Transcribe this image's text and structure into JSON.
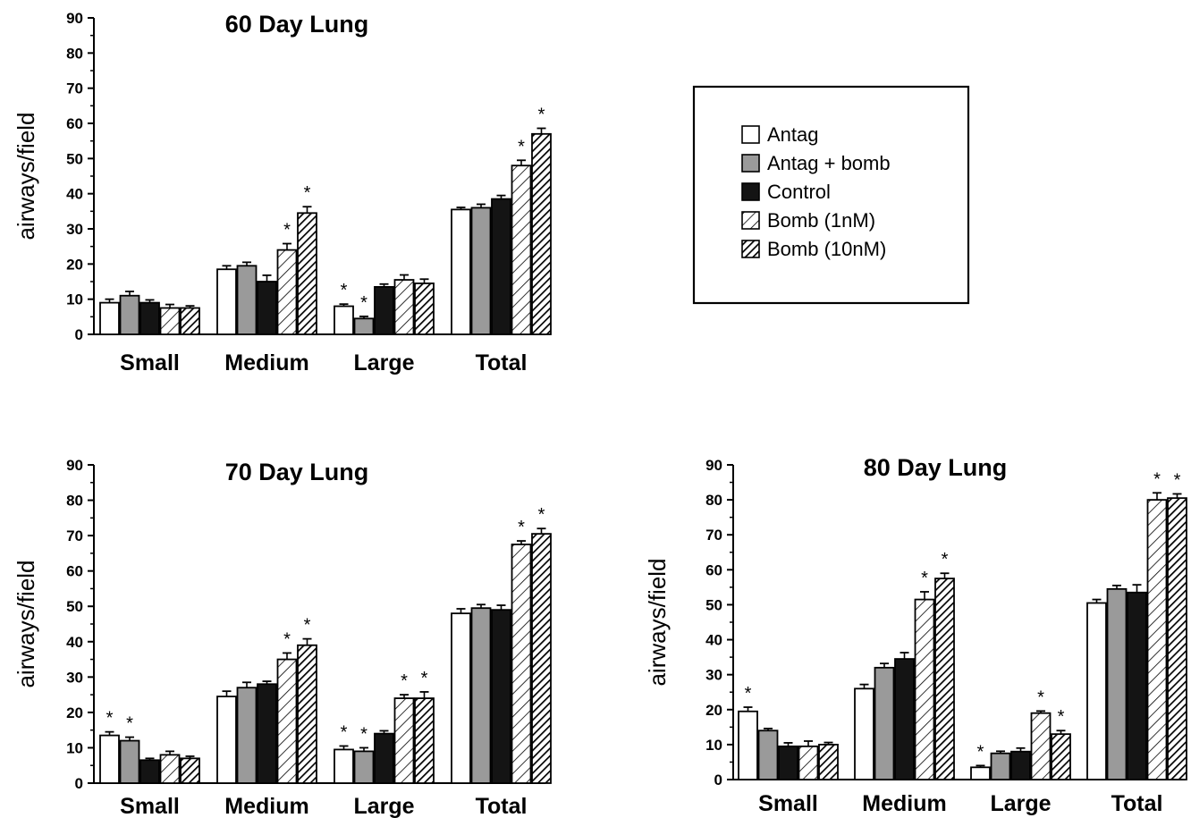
{
  "legend_title": "",
  "legend": [
    {
      "name": "Antag",
      "pattern": "white"
    },
    {
      "name": "Antag + bomb",
      "pattern": "gray"
    },
    {
      "name": "Control",
      "pattern": "black"
    },
    {
      "name": "Bomb (1nM)",
      "pattern": "hatch-light"
    },
    {
      "name": "Bomb (10nM)",
      "pattern": "hatch-dark"
    }
  ],
  "colors": {
    "white": "#ffffff",
    "gray": "#9a9a9a",
    "black": "#141414",
    "hatch_line": "#000000"
  },
  "chart_data": [
    {
      "type": "bar",
      "title": "60 Day Lung",
      "ylabel": "airways/field",
      "xlabel": "",
      "ylim": [
        0,
        90
      ],
      "yticks": [
        0,
        10,
        20,
        30,
        40,
        50,
        60,
        70,
        80,
        90
      ],
      "categories": [
        "Small",
        "Medium",
        "Large",
        "Total"
      ],
      "grid": false,
      "series": [
        {
          "name": "Antag",
          "values": [
            9,
            18.5,
            8,
            35.5
          ],
          "errors": [
            1,
            1,
            0.6,
            0.6
          ],
          "significant": [
            false,
            false,
            true,
            false
          ]
        },
        {
          "name": "Antag + bomb",
          "values": [
            11,
            19.5,
            4.5,
            36
          ],
          "errors": [
            1.2,
            1,
            0.6,
            1
          ],
          "significant": [
            false,
            false,
            true,
            false
          ]
        },
        {
          "name": "Control",
          "values": [
            9,
            15,
            13.5,
            38.5
          ],
          "errors": [
            0.8,
            1.8,
            0.8,
            1
          ],
          "significant": [
            false,
            false,
            false,
            false
          ]
        },
        {
          "name": "Bomb (1nM)",
          "values": [
            7.5,
            24,
            15.5,
            48
          ],
          "errors": [
            1,
            1.8,
            1.4,
            1.5
          ],
          "significant": [
            false,
            true,
            false,
            true
          ]
        },
        {
          "name": "Bomb (10nM)",
          "values": [
            7.5,
            34.5,
            14.5,
            57
          ],
          "errors": [
            0.6,
            1.8,
            1.2,
            1.6
          ],
          "significant": [
            false,
            true,
            false,
            true
          ]
        }
      ]
    },
    {
      "type": "bar",
      "title": "70 Day Lung",
      "ylabel": "airways/field",
      "xlabel": "",
      "ylim": [
        0,
        90
      ],
      "yticks": [
        0,
        10,
        20,
        30,
        40,
        50,
        60,
        70,
        80,
        90
      ],
      "categories": [
        "Small",
        "Medium",
        "Large",
        "Total"
      ],
      "grid": false,
      "series": [
        {
          "name": "Antag",
          "values": [
            13.5,
            24.5,
            9.5,
            48
          ],
          "errors": [
            1,
            1.5,
            1,
            1.3
          ],
          "significant": [
            true,
            false,
            true,
            false
          ]
        },
        {
          "name": "Antag + bomb",
          "values": [
            12,
            27,
            9,
            49.5
          ],
          "errors": [
            1,
            1.5,
            1,
            1
          ],
          "significant": [
            true,
            false,
            true,
            false
          ]
        },
        {
          "name": "Control",
          "values": [
            6.5,
            28,
            14,
            49
          ],
          "errors": [
            0.5,
            0.8,
            0.8,
            1.3
          ],
          "significant": [
            false,
            false,
            false,
            false
          ]
        },
        {
          "name": "Bomb (1nM)",
          "values": [
            8,
            35,
            24,
            67.5
          ],
          "errors": [
            1,
            1.8,
            1,
            1
          ],
          "significant": [
            false,
            true,
            true,
            true
          ]
        },
        {
          "name": "Bomb (10nM)",
          "values": [
            7,
            39,
            24,
            70.5
          ],
          "errors": [
            0.6,
            1.8,
            1.8,
            1.5
          ],
          "significant": [
            false,
            true,
            true,
            true
          ]
        }
      ]
    },
    {
      "type": "bar",
      "title": "80 Day Lung",
      "ylabel": "airways/field",
      "xlabel": "",
      "ylim": [
        0,
        90
      ],
      "yticks": [
        0,
        10,
        20,
        30,
        40,
        50,
        60,
        70,
        80,
        90
      ],
      "categories": [
        "Small",
        "Medium",
        "Large",
        "Total"
      ],
      "grid": false,
      "series": [
        {
          "name": "Antag",
          "values": [
            19.5,
            26,
            3.5,
            50.5
          ],
          "errors": [
            1.2,
            1.2,
            0.5,
            1
          ],
          "significant": [
            true,
            false,
            true,
            false
          ]
        },
        {
          "name": "Antag + bomb",
          "values": [
            14,
            32,
            7.5,
            54.5
          ],
          "errors": [
            0.6,
            1.2,
            0.6,
            1
          ],
          "significant": [
            false,
            false,
            false,
            false
          ]
        },
        {
          "name": "Control",
          "values": [
            9.5,
            34.5,
            8,
            53.5
          ],
          "errors": [
            1,
            1.8,
            1,
            2.2
          ],
          "significant": [
            false,
            false,
            false,
            false
          ]
        },
        {
          "name": "Bomb (1nM)",
          "values": [
            9.5,
            51.5,
            19,
            80
          ],
          "errors": [
            1.5,
            2.2,
            0.6,
            2
          ],
          "significant": [
            false,
            true,
            true,
            true
          ]
        },
        {
          "name": "Bomb (10nM)",
          "values": [
            10,
            57.5,
            13,
            80.5
          ],
          "errors": [
            0.6,
            1.5,
            1,
            1.2
          ],
          "significant": [
            false,
            true,
            true,
            true
          ]
        }
      ]
    }
  ]
}
